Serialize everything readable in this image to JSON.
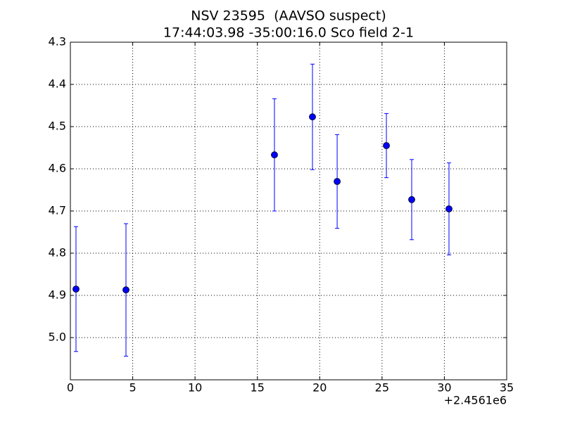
{
  "chart_data": {
    "type": "errorbar",
    "title": "NSV 23595  (AAVSO suspect)",
    "subtitle": "17:44:03.98 -35:00:16.0 Sco field 2-1",
    "x_offset_label": "+2.4561e6",
    "x": [
      0.45,
      4.46,
      16.37,
      19.42,
      21.4,
      25.35,
      27.38,
      30.37
    ],
    "values": [
      4.885,
      4.887,
      4.567,
      4.477,
      4.63,
      4.545,
      4.673,
      4.695
    ],
    "errors": [
      0.148,
      0.157,
      0.133,
      0.125,
      0.111,
      0.076,
      0.095,
      0.109
    ],
    "color": "#0000ff",
    "xlim": [
      0,
      35
    ],
    "xticks": [
      0,
      5,
      10,
      15,
      20,
      25,
      30,
      35
    ],
    "ylim": [
      4.3,
      5.1
    ],
    "y_inverted": true,
    "yticks": [
      4.3,
      4.4,
      4.5,
      4.6,
      4.7,
      4.8,
      4.9,
      {
        "value": 5,
        "label": "5.0"
      }
    ],
    "grid": true
  }
}
